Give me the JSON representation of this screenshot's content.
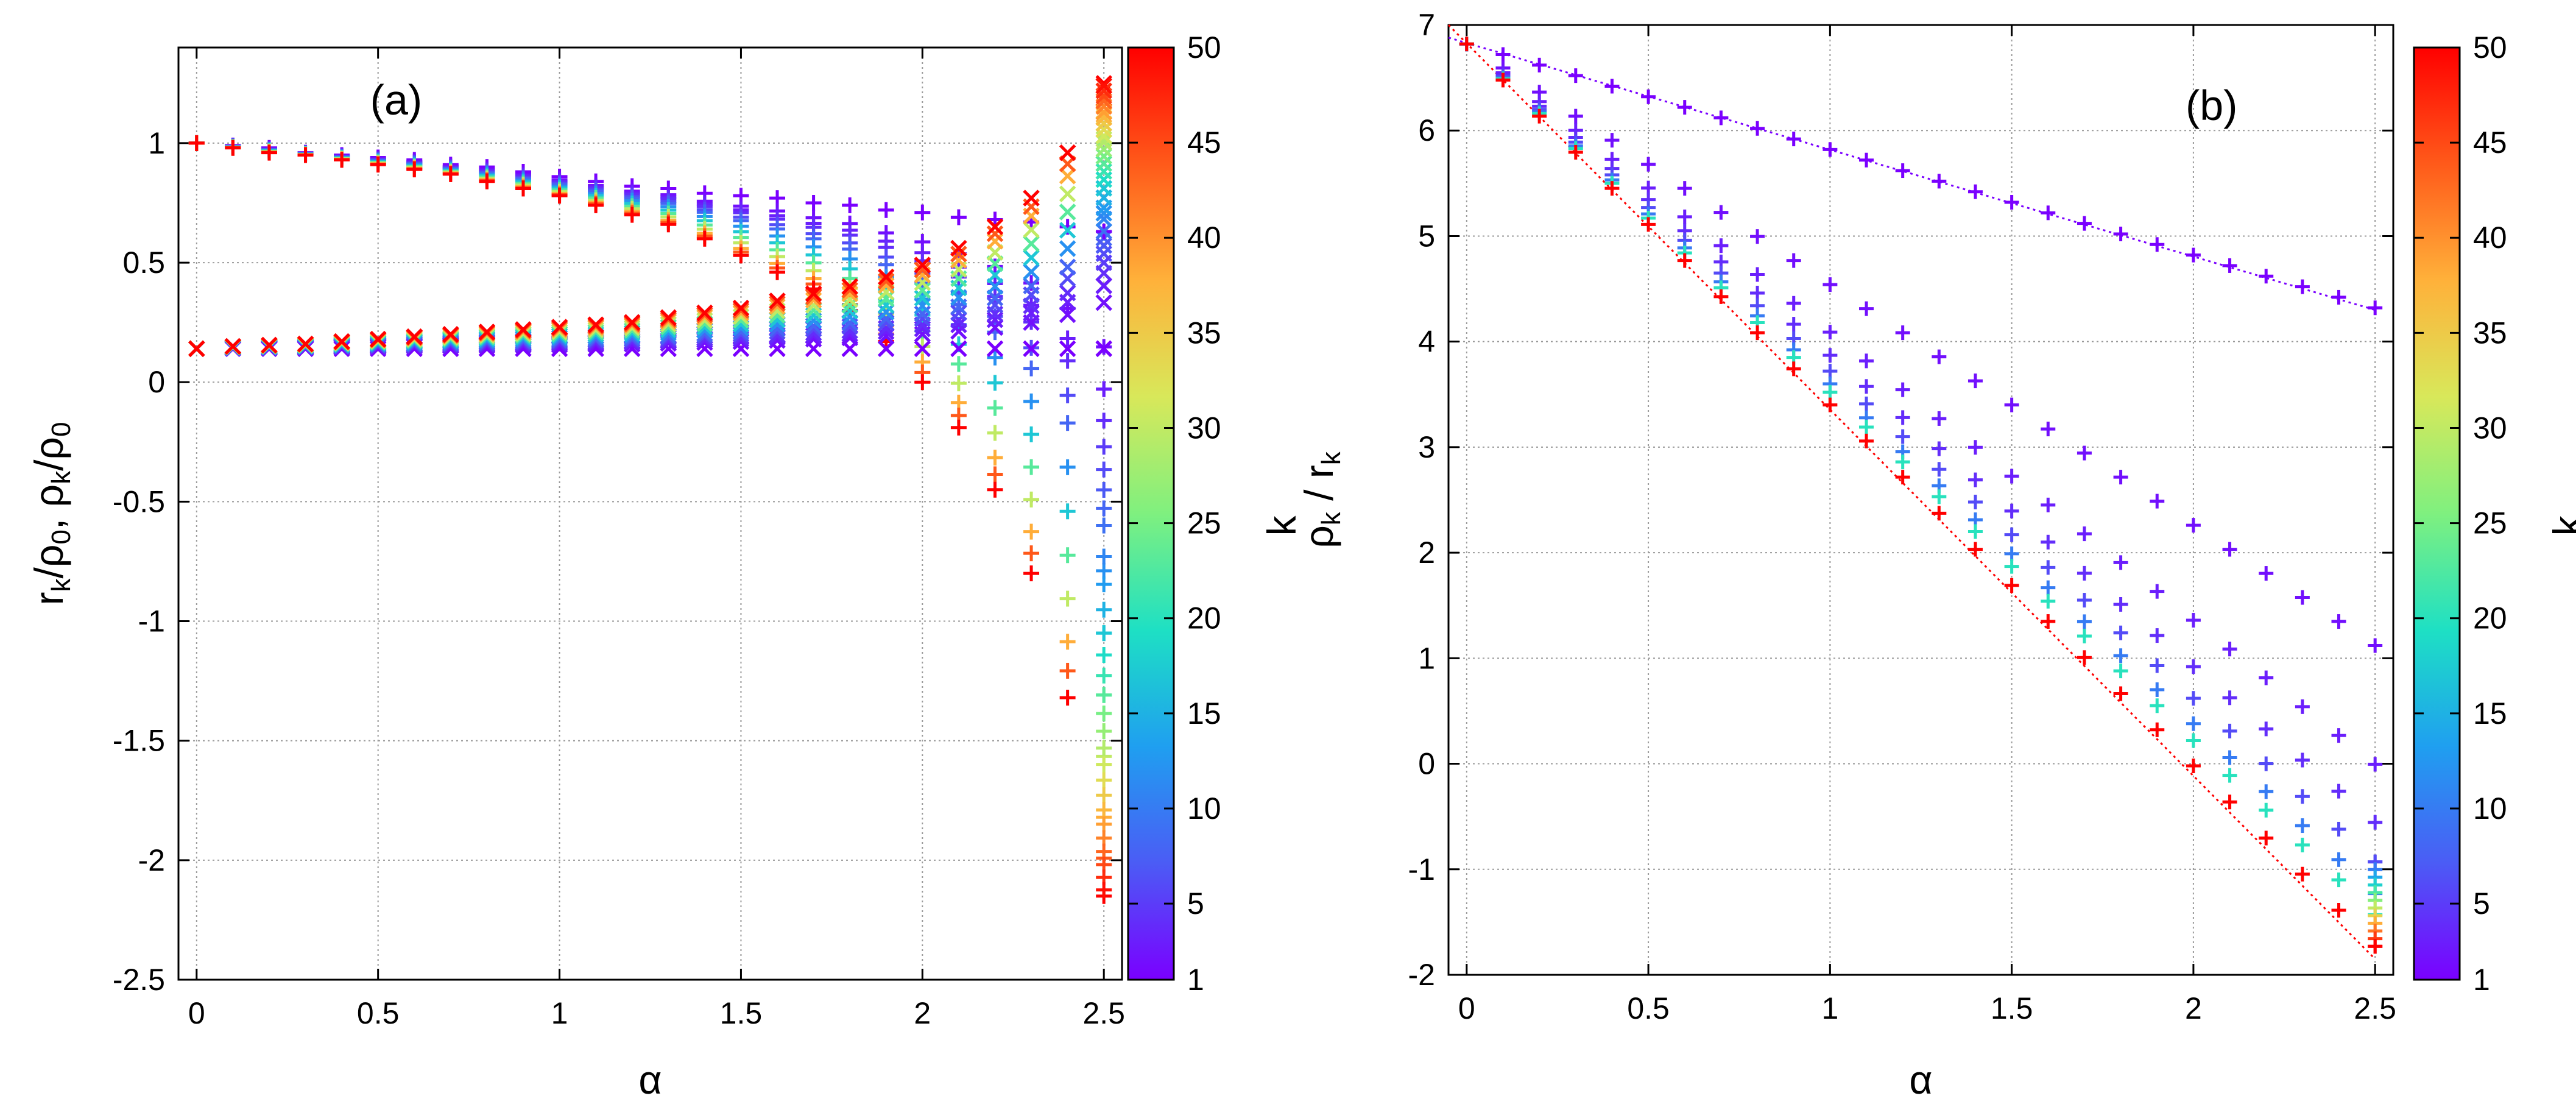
{
  "chart_data": [
    {
      "type": "scatter",
      "panel_label": "(a)",
      "xlabel": "α",
      "ylabel_parts": [
        "r",
        "k",
        "/ρ",
        "0",
        ", ρ",
        "k",
        "/ρ",
        "0"
      ],
      "xlim": [
        -0.05,
        2.55
      ],
      "ylim": [
        -2.5,
        1.4
      ],
      "grid": true,
      "xticks": [
        0,
        0.5,
        1,
        1.5,
        2,
        2.5
      ],
      "xtick_labels": [
        "0",
        "0.5",
        "1",
        "1.5",
        "2",
        "2.5"
      ],
      "yticks": [
        -2.5,
        -2,
        -1.5,
        -1,
        -0.5,
        0,
        0.5,
        1
      ],
      "ytick_labels": [
        "-2.5",
        "-2",
        "-1.5",
        "-1",
        "-0.5",
        "0",
        "0.5",
        "1"
      ],
      "color_variable": "k",
      "k_range": [
        1,
        50
      ],
      "alpha_values": [
        0,
        0.1,
        0.2,
        0.3,
        0.4,
        0.5,
        0.6,
        0.7,
        0.8,
        0.9,
        1.0,
        1.1,
        1.2,
        1.3,
        1.4,
        1.5,
        1.6,
        1.7,
        1.8,
        1.9,
        2.0,
        2.1,
        2.2,
        2.3,
        2.4,
        2.5
      ],
      "series": [
        {
          "name": "r_k/ρ0 (k=1)",
          "marker": "+",
          "k": 1,
          "values": [
            1.0,
            0.99,
            0.98,
            0.96,
            0.95,
            0.94,
            0.93,
            0.91,
            0.9,
            0.88,
            0.86,
            0.84,
            0.82,
            0.81,
            0.79,
            0.78,
            0.77,
            0.75,
            0.74,
            0.72,
            0.71,
            0.69,
            0.68,
            0.67,
            0.65,
            0.63
          ]
        },
        {
          "name": "r_k/ρ0 (k=50)",
          "marker": "+",
          "k": 50,
          "values": [
            1.0,
            0.98,
            0.96,
            0.95,
            0.93,
            0.91,
            0.89,
            0.87,
            0.84,
            0.81,
            0.78,
            0.74,
            0.7,
            0.66,
            0.6,
            0.53,
            0.46,
            0.39,
            0.3,
            0.17,
            0.0,
            -0.19,
            -0.45,
            -0.8,
            -1.32,
            -2.15
          ]
        },
        {
          "name": "ρ_k/ρ0 (k=1)",
          "marker": "x",
          "k": 1,
          "values": [
            0.14,
            0.14,
            0.14,
            0.14,
            0.14,
            0.14,
            0.14,
            0.14,
            0.14,
            0.14,
            0.14,
            0.14,
            0.14,
            0.14,
            0.14,
            0.14,
            0.14,
            0.14,
            0.14,
            0.14,
            0.14,
            0.14,
            0.14,
            0.14,
            0.14,
            0.14
          ]
        },
        {
          "name": "ρ_k/ρ0 (k=50)",
          "marker": "x",
          "k": 50,
          "values": [
            0.14,
            0.15,
            0.155,
            0.16,
            0.17,
            0.18,
            0.19,
            0.2,
            0.21,
            0.22,
            0.23,
            0.24,
            0.25,
            0.27,
            0.29,
            0.31,
            0.34,
            0.37,
            0.4,
            0.44,
            0.49,
            0.56,
            0.65,
            0.77,
            0.96,
            1.25
          ]
        }
      ]
    },
    {
      "type": "scatter",
      "panel_label": "(b)",
      "xlabel": "α",
      "ylabel_parts": [
        "ρ",
        "k",
        " / r",
        "k"
      ],
      "xlim": [
        -0.05,
        2.55
      ],
      "ylim": [
        -2,
        7
      ],
      "grid": true,
      "xticks": [
        0,
        0.5,
        1,
        1.5,
        2,
        2.5
      ],
      "xtick_labels": [
        "0",
        "0.5",
        "1",
        "1.5",
        "2",
        "2.5"
      ],
      "yticks": [
        -2,
        -1,
        0,
        1,
        2,
        3,
        4,
        5,
        6,
        7
      ],
      "ytick_labels": [
        "-2",
        "-1",
        "0",
        "1",
        "2",
        "3",
        "4",
        "5",
        "6",
        "7"
      ],
      "color_variable": "k",
      "k_range": [
        1,
        50
      ],
      "alpha_values": [
        0,
        0.1,
        0.2,
        0.3,
        0.4,
        0.5,
        0.6,
        0.7,
        0.8,
        0.9,
        1.0,
        1.1,
        1.2,
        1.3,
        1.4,
        1.5,
        1.6,
        1.7,
        1.8,
        1.9,
        2.0,
        2.1,
        2.2,
        2.3,
        2.4,
        2.5
      ],
      "lines": [
        {
          "name": "upper fit (k=1)",
          "k": 1,
          "x": [
            -0.05,
            2.5
          ],
          "y": [
            6.88,
            4.3
          ]
        },
        {
          "name": "lower fit (k=50)",
          "k": 50,
          "x": [
            -0.05,
            2.5
          ],
          "y": [
            7.0,
            -1.85
          ]
        }
      ],
      "series": [
        {
          "name": "k=1",
          "k": 1,
          "marker": "+",
          "slope": -1.0,
          "intercept": 6.82
        },
        {
          "name": "k=2",
          "k": 2,
          "marker": "+",
          "slope": -2.28,
          "intercept": 6.82
        },
        {
          "name": "k=3",
          "k": 3,
          "marker": "+",
          "slope": -2.73,
          "intercept": 6.82
        },
        {
          "name": "k=4",
          "k": 4,
          "marker": "+",
          "slope": -2.95,
          "intercept": 6.82
        },
        {
          "name": "k=6",
          "k": 6,
          "marker": "+",
          "slope": -3.1,
          "intercept": 6.82
        },
        {
          "name": "k=10",
          "k": 10,
          "marker": "+",
          "slope": -3.22,
          "intercept": 6.82
        },
        {
          "name": "k=20",
          "k": 20,
          "marker": "+",
          "slope": -3.3,
          "intercept": 6.82
        },
        {
          "name": "k=50",
          "k": 50,
          "marker": "+",
          "slope": -3.42,
          "intercept": 6.82
        }
      ]
    }
  ],
  "colorbar": {
    "label": "k",
    "ticks": [
      1,
      5,
      10,
      15,
      20,
      25,
      30,
      35,
      40,
      45,
      50
    ],
    "tick_labels": [
      "1",
      "5",
      "10",
      "15",
      "20",
      "25",
      "30",
      "35",
      "40",
      "45",
      "50"
    ],
    "range": [
      1,
      50
    ],
    "stops": [
      "#7a00ff",
      "#4b5cf5",
      "#1f9ff0",
      "#1ee0c4",
      "#7ff07f",
      "#d8e85a",
      "#ffb13a",
      "#ff5a1a",
      "#ff0000"
    ]
  }
}
